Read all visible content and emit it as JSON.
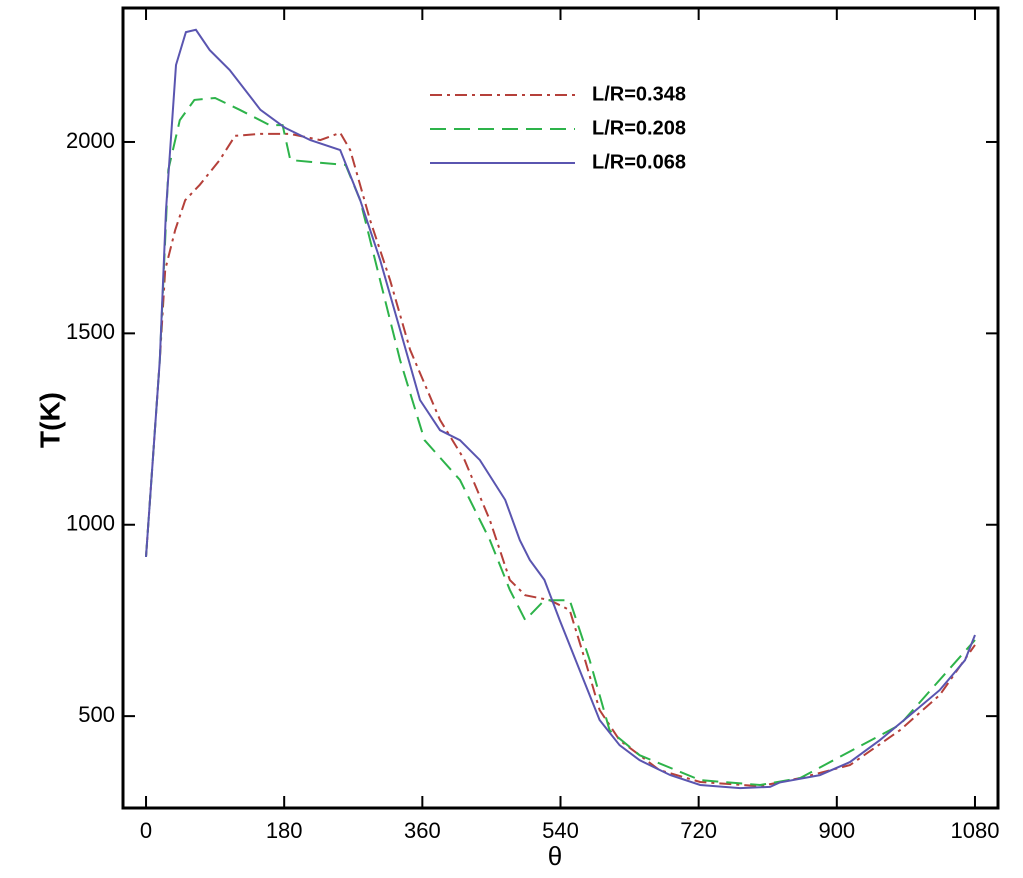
{
  "chart_data": {
    "type": "line",
    "xlabel": "θ",
    "ylabel": "T(K)",
    "xlim": [
      -30,
      1110
    ],
    "ylim": [
      260,
      2350
    ],
    "xticks": [
      0,
      180,
      360,
      540,
      720,
      900,
      1080
    ],
    "yticks": [
      500,
      1000,
      1500,
      2000
    ],
    "legend": "upper center",
    "series": [
      {
        "name": "L/R=0.348",
        "color": "#b5403a",
        "linestyle": "dashdot",
        "x": [
          0,
          18,
          25,
          38,
          51,
          70,
          96,
          116,
          149,
          188,
          227,
          253,
          266,
          292,
          318,
          344,
          383,
          415,
          448,
          474,
          494,
          526,
          552,
          572,
          591,
          617,
          669,
          722,
          800,
          852,
          917,
          982,
          1034,
          1080
        ],
        "values": [
          916,
          1430,
          1666,
          1770,
          1848,
          1888,
          1953,
          2016,
          2021,
          2021,
          2005,
          2024,
          1979,
          1796,
          1639,
          1457,
          1274,
          1169,
          1012,
          856,
          816,
          803,
          777,
          646,
          516,
          437,
          359,
          328,
          317,
          338,
          372,
          463,
          555,
          686
        ]
      },
      {
        "name": "L/R=0.208",
        "color": "#2db34a",
        "linestyle": "dashed",
        "x": [
          0,
          18,
          29,
          44,
          63,
          90,
          122,
          161,
          178,
          188,
          214,
          260,
          279,
          305,
          331,
          363,
          409,
          448,
          474,
          494,
          519,
          552,
          578,
          604,
          643,
          722,
          800,
          852,
          982,
          1080
        ],
        "values": [
          916,
          1430,
          1927,
          2057,
          2110,
          2115,
          2084,
          2044,
          2044,
          1953,
          1948,
          1940,
          1848,
          1639,
          1430,
          1221,
          1117,
          960,
          830,
          751,
          803,
          803,
          646,
          463,
          398,
          333,
          320,
          338,
          477,
          699
        ]
      },
      {
        "name": "L/R=0.068",
        "color": "#5a55b0",
        "linestyle": "solid",
        "x": [
          0,
          18,
          26,
          39,
          52,
          65,
          83,
          109,
          149,
          181,
          214,
          253,
          279,
          305,
          331,
          357,
          383,
          409,
          435,
          468,
          487,
          500,
          519,
          539,
          565,
          591,
          617,
          643,
          683,
          722,
          774,
          813,
          826,
          878,
          917,
          956,
          995,
          1034,
          1067,
          1080
        ],
        "values": [
          916,
          1430,
          1822,
          2201,
          2287,
          2293,
          2240,
          2188,
          2084,
          2037,
          2005,
          1979,
          1848,
          1692,
          1509,
          1326,
          1247,
          1221,
          1169,
          1065,
          960,
          908,
          856,
          751,
          620,
          490,
          424,
          385,
          346,
          320,
          312,
          315,
          327,
          346,
          380,
          437,
          502,
          568,
          646,
          712
        ]
      }
    ]
  }
}
